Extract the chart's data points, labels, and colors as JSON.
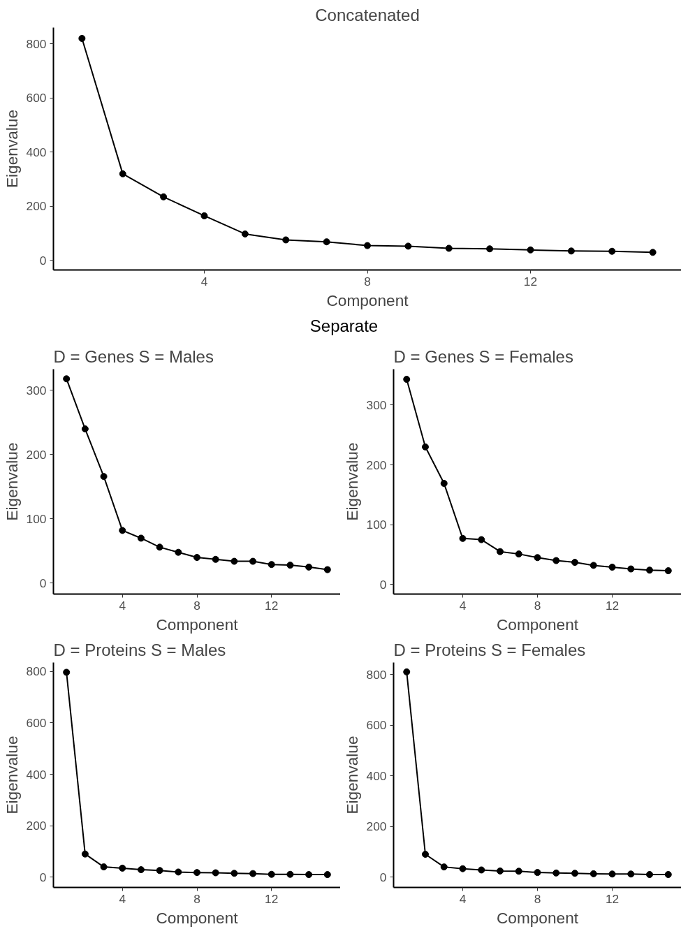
{
  "chart_data": [
    {
      "type": "line",
      "title": "Concatenated",
      "xlabel": "Component",
      "ylabel": "Eigenvalue",
      "x": [
        1,
        2,
        3,
        4,
        5,
        6,
        7,
        8,
        9,
        10,
        11,
        12,
        13,
        14,
        15
      ],
      "marker": "circle",
      "line_style": "solid",
      "xlim": [
        0.3,
        15.7
      ],
      "ylim": [
        -35,
        860
      ],
      "xticks": [
        4,
        8,
        12
      ],
      "yticks": [
        0,
        200,
        400,
        600,
        800
      ],
      "series": [
        {
          "color": "#000000",
          "values": [
            820,
            320,
            235,
            165,
            98,
            76,
            69,
            55,
            53,
            45,
            43,
            39,
            35,
            34,
            30
          ]
        }
      ]
    },
    {
      "type": "line",
      "title": "D = Genes S = Males",
      "annotations": [
        "Separate"
      ],
      "xlabel": "Component",
      "ylabel": "Eigenvalue",
      "x": [
        1,
        2,
        3,
        4,
        5,
        6,
        7,
        8,
        9,
        10,
        11,
        12,
        13,
        14,
        15
      ],
      "marker": "circle",
      "line_style": "solid",
      "xlim": [
        0.3,
        15.7
      ],
      "ylim": [
        -17,
        333
      ],
      "xticks": [
        4,
        8,
        12
      ],
      "yticks": [
        0,
        100,
        200,
        300
      ],
      "series": [
        {
          "color": "#000000",
          "values": [
            318,
            240,
            166,
            82,
            70,
            56,
            48,
            40,
            37,
            34,
            34,
            29,
            28,
            25,
            21
          ]
        }
      ]
    },
    {
      "type": "line",
      "title": "D = Genes S = Females",
      "xlabel": "Component",
      "ylabel": "Eigenvalue",
      "x": [
        1,
        2,
        3,
        4,
        5,
        6,
        7,
        8,
        9,
        10,
        11,
        12,
        13,
        14,
        15
      ],
      "marker": "circle",
      "line_style": "solid",
      "xlim": [
        0.3,
        15.7
      ],
      "ylim": [
        -16,
        360
      ],
      "xticks": [
        4,
        8,
        12
      ],
      "yticks": [
        0,
        100,
        200,
        300
      ],
      "series": [
        {
          "color": "#000000",
          "values": [
            343,
            230,
            169,
            77,
            75,
            55,
            51,
            45,
            40,
            37,
            32,
            29,
            26,
            24,
            23
          ]
        }
      ]
    },
    {
      "type": "line",
      "title": "D = Proteins S = Males",
      "xlabel": "Component",
      "ylabel": "Eigenvalue",
      "x": [
        1,
        2,
        3,
        4,
        5,
        6,
        7,
        8,
        9,
        10,
        11,
        12,
        13,
        14,
        15
      ],
      "marker": "circle",
      "line_style": "solid",
      "xlim": [
        0.3,
        15.7
      ],
      "ylim": [
        -40,
        835
      ],
      "xticks": [
        4,
        8,
        12
      ],
      "yticks": [
        0,
        200,
        400,
        600,
        800
      ],
      "series": [
        {
          "color": "#000000",
          "values": [
            797,
            90,
            40,
            35,
            29,
            26,
            20,
            18,
            17,
            15,
            14,
            11,
            11,
            10,
            10
          ]
        }
      ]
    },
    {
      "type": "line",
      "title": "D = Proteins S = Females",
      "xlabel": "Component",
      "ylabel": "Eigenvalue",
      "x": [
        1,
        2,
        3,
        4,
        5,
        6,
        7,
        8,
        9,
        10,
        11,
        12,
        13,
        14,
        15
      ],
      "marker": "circle",
      "line_style": "solid",
      "xlim": [
        0.3,
        15.7
      ],
      "ylim": [
        -41,
        847
      ],
      "xticks": [
        4,
        8,
        12
      ],
      "yticks": [
        0,
        200,
        400,
        600,
        800
      ],
      "series": [
        {
          "color": "#000000",
          "values": [
            810,
            90,
            40,
            33,
            28,
            24,
            23,
            18,
            16,
            15,
            13,
            12,
            12,
            10,
            10
          ]
        }
      ]
    }
  ]
}
